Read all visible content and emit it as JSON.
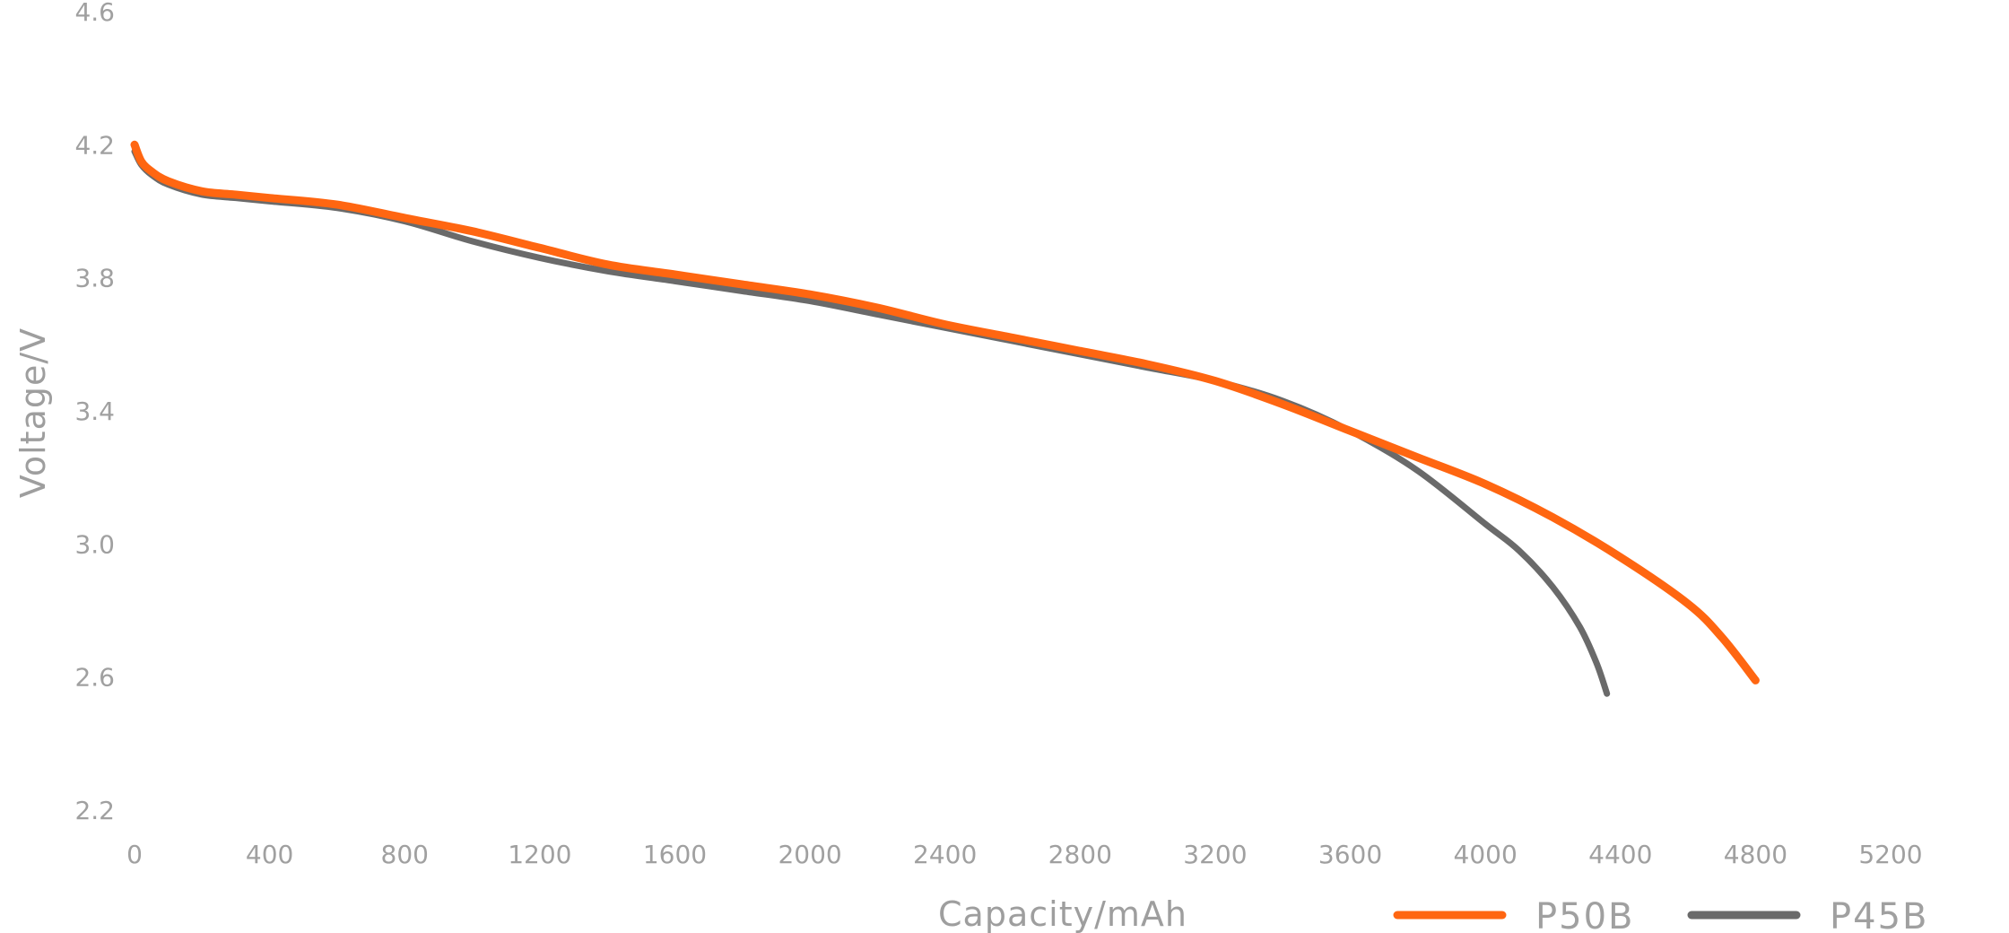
{
  "chart_data": {
    "type": "line",
    "title": "",
    "xlabel": "Capacity/mAh",
    "ylabel": "Voltage/V",
    "xlim": [
      0,
      5200
    ],
    "ylim": [
      2.2,
      4.6
    ],
    "x_ticks": [
      0,
      400,
      800,
      1200,
      1600,
      2000,
      2400,
      2800,
      3200,
      3600,
      4000,
      4400,
      4800,
      5200
    ],
    "y_ticks": [
      2.2,
      2.6,
      3.0,
      3.4,
      3.8,
      4.2,
      4.6
    ],
    "x_tick_labels": [
      "0",
      "400",
      "800",
      "1200",
      "1600",
      "2000",
      "2400",
      "2800",
      "3200",
      "3600",
      "4000",
      "4400",
      "4800",
      "5200"
    ],
    "y_tick_labels": [
      "2.2",
      "2.6",
      "3.0",
      "3.4",
      "3.8",
      "4.2",
      "4.6"
    ],
    "grid": false,
    "legend_position": "bottom-right",
    "series": [
      {
        "name": "P50B",
        "color": "#ff6611",
        "x": [
          0,
          20,
          50,
          100,
          200,
          300,
          400,
          600,
          800,
          1000,
          1200,
          1400,
          1600,
          1800,
          2000,
          2200,
          2400,
          2600,
          2800,
          3000,
          3200,
          3400,
          3600,
          3800,
          4000,
          4200,
          4400,
          4600,
          4700,
          4800
        ],
        "y": [
          4.2,
          4.15,
          4.12,
          4.09,
          4.06,
          4.05,
          4.04,
          4.02,
          3.98,
          3.94,
          3.89,
          3.84,
          3.81,
          3.78,
          3.75,
          3.71,
          3.66,
          3.62,
          3.58,
          3.54,
          3.49,
          3.42,
          3.34,
          3.26,
          3.18,
          3.08,
          2.96,
          2.82,
          2.72,
          2.59
        ]
      },
      {
        "name": "P45B",
        "color": "#6a6a6a",
        "x": [
          0,
          20,
          50,
          100,
          200,
          300,
          400,
          600,
          800,
          1000,
          1200,
          1400,
          1600,
          1800,
          2000,
          2200,
          2400,
          2600,
          2800,
          3000,
          3200,
          3400,
          3600,
          3800,
          4000,
          4100,
          4200,
          4280,
          4330,
          4360
        ],
        "y": [
          4.18,
          4.14,
          4.11,
          4.08,
          4.05,
          4.04,
          4.03,
          4.01,
          3.97,
          3.91,
          3.86,
          3.82,
          3.79,
          3.76,
          3.73,
          3.69,
          3.65,
          3.61,
          3.57,
          3.53,
          3.49,
          3.43,
          3.34,
          3.22,
          3.06,
          2.98,
          2.87,
          2.75,
          2.64,
          2.55
        ]
      }
    ]
  }
}
